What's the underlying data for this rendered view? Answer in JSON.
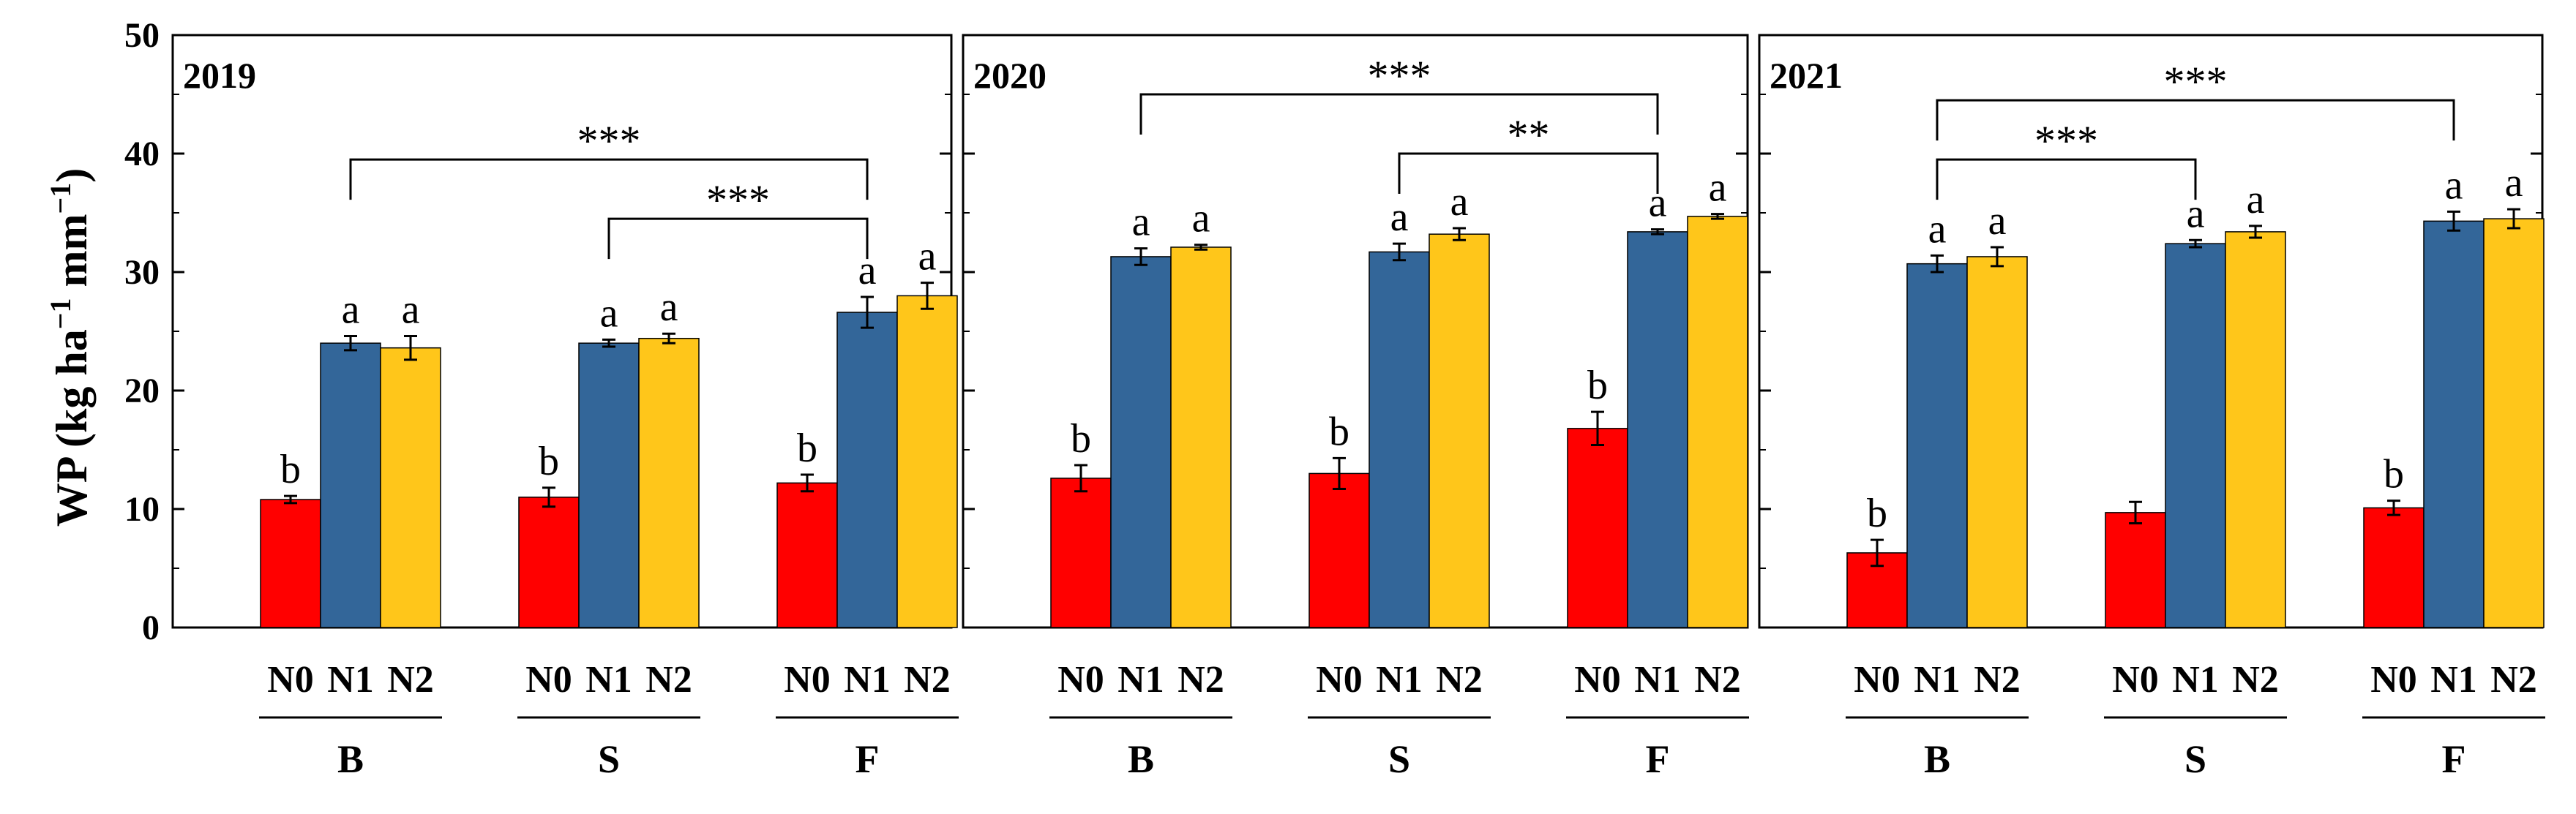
{
  "chart_data": {
    "type": "bar",
    "ylabel": "WP (kg ha",
    "ylabel_unit_exp1": "−1",
    "ylabel_unit_mid": " mm",
    "ylabel_unit_exp2": "−1",
    "ylabel_close": ")",
    "ylim": [
      0,
      50
    ],
    "yticks": [
      0,
      10,
      20,
      30,
      40,
      50
    ],
    "series": [
      {
        "name": "N0",
        "color": "#ff0000"
      },
      {
        "name": "N1",
        "color": "#336699"
      },
      {
        "name": "N2",
        "color": "#ffc61a"
      }
    ],
    "groups": [
      "B",
      "S",
      "F"
    ],
    "panels": [
      {
        "title": "2019",
        "groups": [
          {
            "name": "B",
            "values": [
              10.8,
              24.0,
              23.6
            ],
            "errors": [
              0.3,
              0.6,
              1.0
            ],
            "letters": [
              "b",
              "a",
              "a"
            ]
          },
          {
            "name": "S",
            "values": [
              11.0,
              24.0,
              24.4
            ],
            "errors": [
              0.8,
              0.3,
              0.4
            ],
            "letters": [
              "b",
              "a",
              "a"
            ]
          },
          {
            "name": "F",
            "values": [
              12.2,
              26.6,
              28.0
            ],
            "errors": [
              0.7,
              1.3,
              1.1
            ],
            "letters": [
              "b",
              "a",
              "a"
            ]
          }
        ],
        "brackets": [
          {
            "from": "B",
            "to": "F",
            "y": 39.5,
            "label": "***"
          },
          {
            "from": "S",
            "to": "F",
            "y": 34.5,
            "label": "***"
          }
        ]
      },
      {
        "title": "2020",
        "groups": [
          {
            "name": "B",
            "values": [
              12.6,
              31.3,
              32.1
            ],
            "errors": [
              1.1,
              0.7,
              0.2
            ],
            "letters": [
              "b",
              "a",
              "a"
            ]
          },
          {
            "name": "S",
            "values": [
              13.0,
              31.7,
              33.2
            ],
            "errors": [
              1.3,
              0.7,
              0.5
            ],
            "letters": [
              "b",
              "a",
              "a"
            ]
          },
          {
            "name": "F",
            "values": [
              16.8,
              33.4,
              34.7
            ],
            "errors": [
              1.4,
              0.2,
              0.2
            ],
            "letters": [
              "b",
              "a",
              "a"
            ]
          }
        ],
        "brackets": [
          {
            "from": "B",
            "to": "F",
            "y": 45.0,
            "label": "***"
          },
          {
            "from": "S",
            "to": "F",
            "y": 40.0,
            "label": "**"
          }
        ]
      },
      {
        "title": "2021",
        "groups": [
          {
            "name": "B",
            "values": [
              6.3,
              30.7,
              31.3
            ],
            "errors": [
              1.1,
              0.7,
              0.8
            ],
            "letters": [
              "b",
              "a",
              "a"
            ]
          },
          {
            "name": "S",
            "values": [
              9.7,
              32.4,
              33.4
            ],
            "errors": [
              0.9,
              0.3,
              0.5
            ],
            "letters": [
              "",
              "a",
              "a"
            ]
          },
          {
            "name": "F",
            "values": [
              10.1,
              34.3,
              34.5
            ],
            "errors": [
              0.6,
              0.8,
              0.8
            ],
            "letters": [
              "b",
              "a",
              "a"
            ]
          }
        ],
        "brackets": [
          {
            "from": "B",
            "to": "F",
            "y": 44.5,
            "label": "***"
          },
          {
            "from": "B",
            "to": "S",
            "y": 39.5,
            "label": "***"
          }
        ]
      }
    ]
  }
}
